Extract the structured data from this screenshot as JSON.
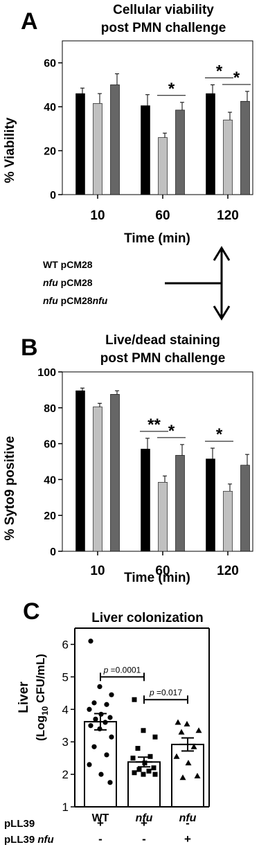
{
  "chart_data": [
    {
      "panel_label": "A",
      "type": "bar",
      "title": [
        "Cellular viability",
        "post PMN challenge"
      ],
      "xlabel": "Time (min)",
      "ylabel": "% Viability",
      "categories": [
        "10",
        "60",
        "120"
      ],
      "ylim": [
        0,
        70
      ],
      "yticks": [
        0,
        20,
        40,
        60
      ],
      "grid": false,
      "series": [
        {
          "name": "WT pCM28",
          "color": "#000000",
          "values": [
            46,
            40.5,
            46
          ],
          "errors": [
            2.5,
            5,
            4
          ]
        },
        {
          "name": "nfu pCM28",
          "color": "#c0c0c0",
          "values": [
            41.5,
            26,
            34
          ],
          "errors": [
            4.5,
            2,
            3.5
          ]
        },
        {
          "name": "nfu pCM28nfu",
          "color": "#666666",
          "values": [
            50,
            38.5,
            42.5
          ],
          "errors": [
            5,
            3.5,
            4.5
          ]
        }
      ],
      "significance": [
        {
          "group": 1,
          "from": 1,
          "to": 2,
          "label": "*"
        },
        {
          "group": 2,
          "from": 0,
          "to": 1,
          "label": "*"
        },
        {
          "group": 2,
          "from": 1,
          "to": 2,
          "label": "*"
        }
      ]
    },
    {
      "panel_label": "B",
      "type": "bar",
      "title": [
        "Live/dead staining",
        "post PMN challenge"
      ],
      "xlabel": "Time (min)",
      "ylabel": "% Syto9 positive",
      "categories": [
        "10",
        "60",
        "120"
      ],
      "ylim": [
        0,
        100
      ],
      "yticks": [
        0,
        20,
        40,
        60,
        80,
        100
      ],
      "grid": false,
      "series": [
        {
          "name": "WT pCM28",
          "color": "#000000",
          "values": [
            89.5,
            57,
            51.5
          ],
          "errors": [
            1.5,
            6,
            6
          ]
        },
        {
          "name": "nfu pCM28",
          "color": "#c0c0c0",
          "values": [
            80.5,
            38.5,
            33.5
          ],
          "errors": [
            2,
            3.5,
            4
          ]
        },
        {
          "name": "nfu pCM28nfu",
          "color": "#666666",
          "values": [
            87.5,
            53.5,
            48
          ],
          "errors": [
            2,
            6,
            6
          ]
        }
      ],
      "significance": [
        {
          "group": 1,
          "from": 0,
          "to": 1,
          "label": "**"
        },
        {
          "group": 1,
          "from": 1,
          "to": 2,
          "label": "*"
        },
        {
          "group": 2,
          "from": 0,
          "to": 1,
          "label": "*"
        }
      ]
    },
    {
      "panel_label": "C",
      "type": "bar",
      "title": "Liver colonization",
      "ylabel_parts": [
        "Liver",
        "(Log",
        "10",
        " CFU/mL)"
      ],
      "ylim": [
        1,
        6.5
      ],
      "yticks": [
        1,
        2,
        3,
        4,
        5,
        6
      ],
      "categories": [
        "WT",
        "nfu",
        "nfu"
      ],
      "row_labels": [
        "pLL39",
        "pLL39 nfu"
      ],
      "row_values": [
        [
          "+",
          "+",
          "-"
        ],
        [
          "-",
          "-",
          "+"
        ]
      ],
      "means": [
        3.62,
        2.38,
        2.92
      ],
      "sem": [
        0.25,
        0.15,
        0.2
      ],
      "markers": [
        "circle",
        "square",
        "triangle"
      ],
      "points": [
        [
          6.1,
          4.7,
          4.45,
          4.2,
          4.15,
          4.0,
          3.85,
          3.75,
          3.7,
          3.6,
          3.5,
          3.4,
          3.15,
          2.85,
          2.6,
          2.3,
          2.0,
          1.75
        ],
        [
          4.3,
          3.35,
          3.15,
          2.8,
          2.55,
          2.5,
          2.35,
          2.2,
          2.15,
          2.1,
          2.05,
          2.0,
          2.0
        ],
        [
          3.6,
          3.55,
          3.35,
          3.3,
          2.85,
          2.55,
          2.35,
          1.95,
          1.9
        ]
      ],
      "comparisons": [
        {
          "from": 0,
          "to": 1,
          "label_p": "p",
          "label_value": "=0.0001"
        },
        {
          "from": 1,
          "to": 2,
          "label_p": "p",
          "label_value": "=0.017"
        }
      ]
    }
  ],
  "legend": {
    "entries": [
      {
        "italic": "",
        "plain": "WT pCM28"
      },
      {
        "italic": "nfu",
        "plain": " pCM28"
      },
      {
        "italic": "nfu",
        "plain": " pCM28",
        "italic2": "nfu"
      }
    ]
  }
}
